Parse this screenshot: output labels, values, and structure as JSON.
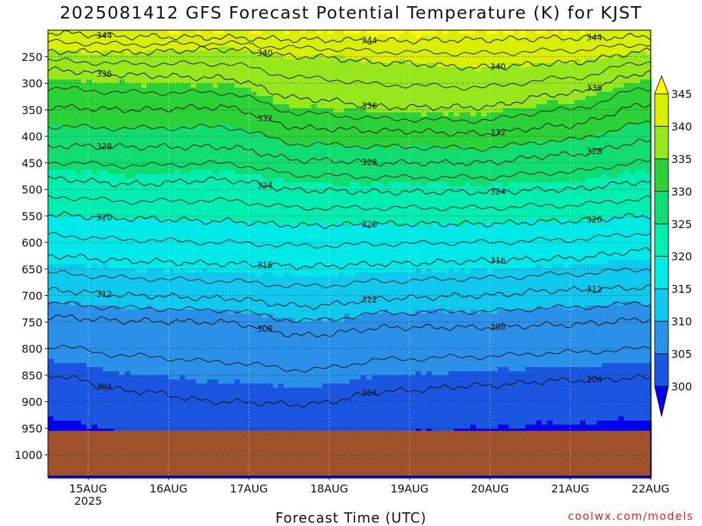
{
  "title": "2025081412 GFS Forecast Potential Temperature (K) for KJST",
  "credit": "coolwx.com/models",
  "chart_data": {
    "type": "heatmap",
    "title": "2025081412 GFS Forecast Potential Temperature (K) for KJST",
    "xlabel": "Forecast Time (UTC)",
    "ylabel": "",
    "x_ticks": [
      "15AUG",
      "16AUG",
      "17AUG",
      "18AUG",
      "19AUG",
      "20AUG",
      "21AUG",
      "22AUG"
    ],
    "x_year_label": "2025",
    "x_range_days": [
      14.5,
      22.0
    ],
    "y_ticks": [
      250,
      300,
      350,
      400,
      450,
      500,
      550,
      600,
      650,
      700,
      750,
      800,
      850,
      900,
      950,
      1000
    ],
    "y_range": [
      200,
      1040
    ],
    "colorbar": {
      "levels": [
        300,
        305,
        310,
        315,
        320,
        325,
        330,
        335,
        340,
        345
      ],
      "colors": [
        "#0000ee",
        "#1a56e0",
        "#2a90e8",
        "#10c8ee",
        "#00e8e8",
        "#00eeb0",
        "#10dc70",
        "#2ad238",
        "#96e81c",
        "#d8f000",
        "#ffff00"
      ]
    },
    "ground": {
      "pressure_top": 955,
      "color": "#a0522d"
    },
    "grid": "dotted",
    "contour_interval": 4,
    "isentropes": [
      {
        "theta": 344,
        "pressure": [
          205,
          212,
          214,
          218,
          220,
          218,
          215,
          212
        ]
      },
      {
        "theta": 340,
        "pressure": [
          240,
          242,
          236,
          250,
          262,
          270,
          262,
          240
        ]
      },
      {
        "theta": 336,
        "pressure": [
          275,
          285,
          290,
          330,
          345,
          345,
          320,
          280
        ]
      },
      {
        "theta": 332,
        "pressure": [
          345,
          350,
          345,
          385,
          390,
          395,
          380,
          340
        ]
      },
      {
        "theta": 328,
        "pressure": [
          418,
          420,
          420,
          445,
          450,
          450,
          435,
          410
        ]
      },
      {
        "theta": 324,
        "pressure": [
          480,
          490,
          482,
          502,
          505,
          505,
          500,
          485
        ]
      },
      {
        "theta": 320,
        "pressure": [
          548,
          555,
          560,
          568,
          565,
          565,
          560,
          550
        ]
      },
      {
        "theta": 316,
        "pressure": [
          625,
          635,
          640,
          645,
          640,
          635,
          630,
          615
        ]
      },
      {
        "theta": 312,
        "pressure": [
          690,
          700,
          705,
          720,
          705,
          700,
          690,
          685
        ]
      },
      {
        "theta": 308,
        "pressure": [
          740,
          748,
          750,
          775,
          760,
          760,
          755,
          745
        ]
      },
      {
        "theta": 304,
        "pressure": [
          850,
          880,
          900,
          905,
          880,
          870,
          860,
          855
        ]
      }
    ],
    "annotations": [
      "344",
      "340",
      "336",
      "332",
      "328",
      "324",
      "320",
      "316",
      "312",
      "308",
      "304"
    ]
  }
}
